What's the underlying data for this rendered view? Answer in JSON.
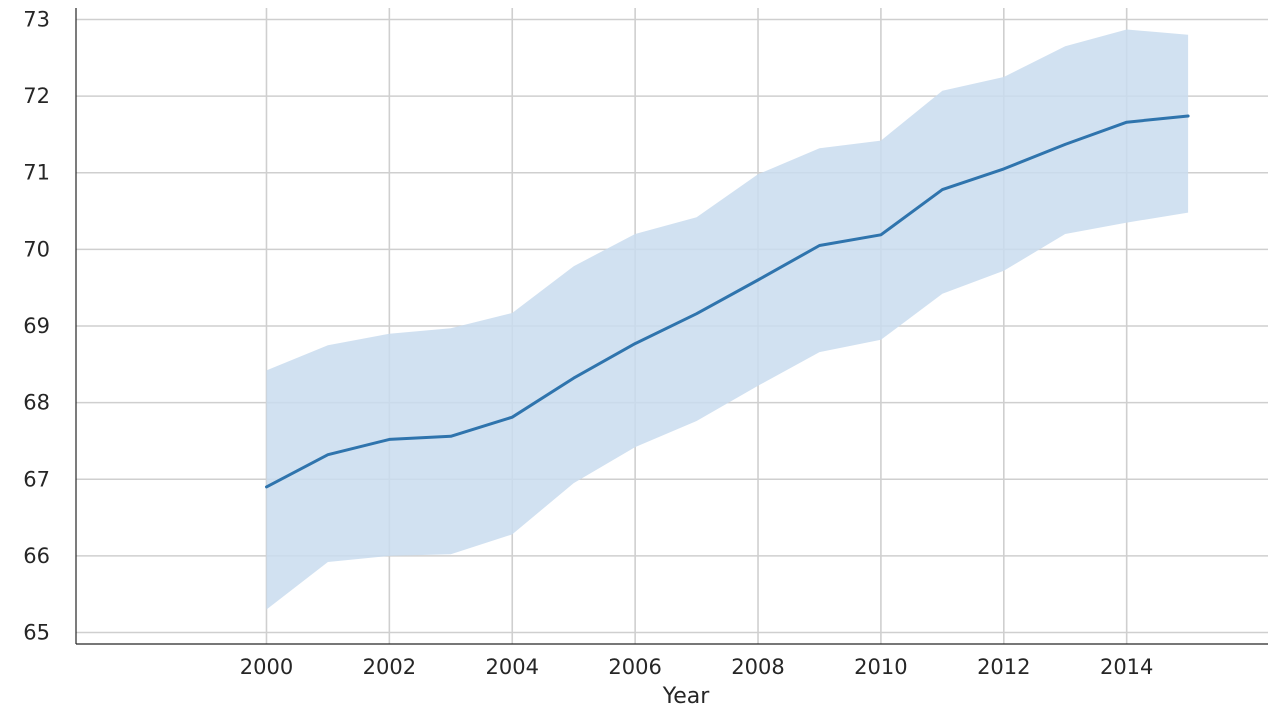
{
  "chart_data": {
    "type": "line",
    "title": "",
    "xlabel": "Year",
    "ylabel": "",
    "xlim": [
      1996.9,
      2016.3
    ],
    "ylim": [
      64.85,
      73.15
    ],
    "grid": true,
    "x_ticks": [
      2000,
      2002,
      2004,
      2006,
      2008,
      2010,
      2012,
      2014
    ],
    "y_ticks": [
      65,
      66,
      67,
      68,
      69,
      70,
      71,
      72,
      73
    ],
    "x": [
      2000,
      2001,
      2002,
      2003,
      2004,
      2005,
      2006,
      2007,
      2008,
      2009,
      2010,
      2011,
      2012,
      2013,
      2014,
      2015
    ],
    "series": [
      {
        "values": [
          66.9,
          67.32,
          67.52,
          67.56,
          67.81,
          68.32,
          68.77,
          69.16,
          69.6,
          70.05,
          70.19,
          70.78,
          71.05,
          71.37,
          71.66,
          71.74
        ],
        "ci_lower": [
          65.3,
          65.92,
          66.0,
          66.02,
          66.28,
          66.95,
          67.42,
          67.76,
          68.22,
          68.66,
          68.82,
          69.42,
          69.72,
          70.2,
          70.35,
          70.48
        ],
        "ci_upper": [
          68.42,
          68.75,
          68.9,
          68.97,
          69.17,
          69.78,
          70.2,
          70.42,
          70.98,
          71.32,
          71.42,
          72.07,
          72.25,
          72.65,
          72.87,
          72.8
        ],
        "color": "#2f74ad",
        "band_color": "#c9dcee"
      }
    ],
    "colors": {
      "grid": "#cfcfcf",
      "axis_line": "#262626",
      "text": "#262626"
    }
  }
}
